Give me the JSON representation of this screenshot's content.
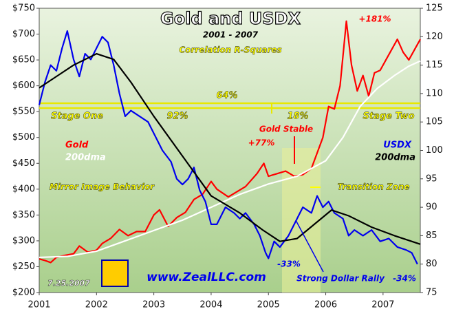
{
  "chart_data": {
    "type": "line",
    "title": "Gold and USDX",
    "subtitle": "2001 - 2007",
    "annotations": [
      "Correlation R-Squares",
      "64%",
      "Stage One",
      "92%",
      "18%",
      "Stage Two",
      "Gold Stable",
      "+77%",
      "+181%",
      "Mirror Image Behavior",
      "Transition Zone",
      "-33%",
      "Strong Dollar Rally",
      "-34%",
      "www.ZealLLC.com",
      "7.25.2007"
    ],
    "xlim": [
      2001,
      2007.65
    ],
    "xticks": [
      2001,
      2002,
      2003,
      2004,
      2005,
      2006,
      2007
    ],
    "ylim": [
      200,
      750
    ],
    "yticks": [
      {
        "value": 200,
        "label": "$200"
      },
      {
        "value": 250,
        "label": "$250"
      },
      {
        "value": 300,
        "label": "$300"
      },
      {
        "value": 350,
        "label": "$350"
      },
      {
        "value": 400,
        "label": "$400"
      },
      {
        "value": 450,
        "label": "$450"
      },
      {
        "value": 500,
        "label": "$500"
      },
      {
        "value": 550,
        "label": "$550"
      },
      {
        "value": 600,
        "label": "$600"
      },
      {
        "value": 650,
        "label": "$650"
      },
      {
        "value": 700,
        "label": "$700"
      },
      {
        "value": 750,
        "label": "$750"
      }
    ],
    "y2lim": [
      75,
      125
    ],
    "y2ticks": [
      75,
      80,
      85,
      90,
      95,
      100,
      105,
      110,
      115,
      120,
      125
    ],
    "series": [
      {
        "name": "Gold",
        "color": "#ff0000",
        "x": [
          2001.0,
          2001.1,
          2001.2,
          2001.3,
          2001.45,
          2001.6,
          2001.7,
          2001.85,
          2002.0,
          2002.1,
          2002.25,
          2002.4,
          2002.55,
          2002.7,
          2002.85,
          2003.0,
          2003.1,
          2003.25,
          2003.4,
          2003.55,
          2003.7,
          2003.85,
          2004.0,
          2004.1,
          2004.3,
          2004.45,
          2004.6,
          2004.8,
          2004.92,
          2005.0,
          2005.15,
          2005.3,
          2005.45,
          2005.6,
          2005.75,
          2005.85,
          2005.95,
          2006.05,
          2006.15,
          2006.25,
          2006.36,
          2006.45,
          2006.55,
          2006.65,
          2006.75,
          2006.85,
          2006.95,
          2007.05,
          2007.15,
          2007.25,
          2007.35,
          2007.45,
          2007.55,
          2007.65
        ],
        "values": [
          265,
          262,
          258,
          268,
          272,
          275,
          290,
          278,
          282,
          295,
          305,
          322,
          310,
          318,
          318,
          350,
          360,
          328,
          345,
          355,
          380,
          390,
          415,
          400,
          385,
          395,
          405,
          430,
          450,
          425,
          430,
          435,
          425,
          428,
          440,
          470,
          500,
          560,
          555,
          600,
          725,
          640,
          590,
          620,
          580,
          625,
          630,
          650,
          670,
          690,
          665,
          650,
          670,
          690
        ]
      },
      {
        "name": "200dma",
        "color": "#ffffff",
        "x": [
          2001.0,
          2001.5,
          2002.0,
          2002.5,
          2003.0,
          2003.5,
          2004.0,
          2004.5,
          2005.0,
          2005.5,
          2006.0,
          2006.3,
          2006.6,
          2006.9,
          2007.2,
          2007.45,
          2007.65
        ],
        "values": [
          268,
          270,
          280,
          300,
          320,
          340,
          365,
          390,
          410,
          425,
          455,
          500,
          560,
          595,
          620,
          638,
          648
        ]
      },
      {
        "name": "USDX",
        "color": "#0000ee",
        "axis": "y2",
        "x": [
          2001.0,
          2001.1,
          2001.2,
          2001.3,
          2001.4,
          2001.49,
          2001.6,
          2001.7,
          2001.8,
          2001.9,
          2002.0,
          2002.1,
          2002.2,
          2002.3,
          2002.4,
          2002.5,
          2002.6,
          2002.75,
          2002.9,
          2003.0,
          2003.15,
          2003.3,
          2003.4,
          2003.5,
          2003.6,
          2003.7,
          2003.8,
          2003.9,
          2004.0,
          2004.1,
          2004.25,
          2004.4,
          2004.5,
          2004.6,
          2004.75,
          2004.85,
          2004.95,
          2005.0,
          2005.1,
          2005.2,
          2005.35,
          2005.5,
          2005.6,
          2005.75,
          2005.85,
          2005.95,
          2006.05,
          2006.15,
          2006.3,
          2006.4,
          2006.5,
          2006.65,
          2006.8,
          2006.95,
          2007.1,
          2007.25,
          2007.4,
          2007.5,
          2007.6
        ],
        "values": [
          108,
          112,
          115,
          114,
          118,
          121,
          116,
          113,
          117,
          116,
          118,
          120,
          119,
          115,
          110,
          106,
          107,
          106,
          105,
          103,
          100,
          98,
          95,
          94,
          95,
          97,
          93,
          91,
          87,
          87,
          90,
          89,
          88,
          89,
          87,
          85,
          82,
          81,
          84,
          83,
          85,
          88,
          90,
          89,
          92,
          90,
          91,
          89,
          88,
          85,
          86,
          85,
          86,
          84,
          84.5,
          83,
          82.5,
          82,
          80
        ]
      },
      {
        "name": "200dma",
        "color": "#000000",
        "axis": "y2",
        "x": [
          2001.0,
          2001.3,
          2001.6,
          2002.0,
          2002.3,
          2002.6,
          2003.0,
          2003.5,
          2004.0,
          2004.5,
          2004.9,
          2005.2,
          2005.5,
          2005.8,
          2006.1,
          2006.4,
          2006.8,
          2007.2,
          2007.65
        ],
        "values": [
          111,
          113,
          115,
          117,
          116,
          112,
          106,
          99,
          92,
          89,
          86,
          84,
          84.5,
          87,
          89.5,
          88.5,
          86.5,
          85,
          83.5
        ]
      }
    ]
  }
}
